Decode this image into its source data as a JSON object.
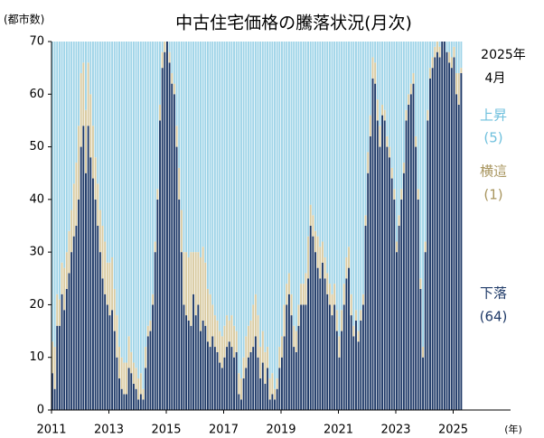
{
  "chart_data": {
    "type": "bar",
    "stacked": true,
    "title": "中古住宅価格の騰落状況(月次)",
    "y_label": "(都市数)",
    "x_label": "(年)",
    "date_label": [
      "2025年",
      "4月"
    ],
    "categories": [
      null,
      null,
      null,
      null,
      null,
      null,
      null,
      null,
      null,
      null,
      null,
      null,
      null,
      null,
      null,
      null,
      null,
      null,
      null,
      null,
      null,
      null,
      null,
      null,
      null,
      null,
      null,
      null,
      null,
      null,
      null,
      null,
      null,
      null,
      null,
      null,
      null,
      null,
      null,
      null,
      null,
      null,
      null,
      null,
      null,
      null,
      null,
      null,
      null,
      null,
      null,
      null,
      null,
      null,
      null,
      null,
      null,
      null,
      null,
      null,
      null,
      null,
      null,
      null,
      null,
      null,
      null,
      null,
      null,
      null,
      null,
      null,
      null,
      null,
      null,
      null,
      null,
      null,
      null,
      null,
      null,
      null,
      null,
      null,
      null,
      null,
      null,
      null,
      null,
      null,
      null,
      null,
      null,
      null,
      null,
      null,
      null,
      null,
      null,
      null,
      null,
      null,
      null,
      null,
      null,
      null,
      null,
      null,
      null,
      null,
      null,
      null,
      null,
      null,
      null,
      null,
      null,
      null,
      null,
      null,
      null,
      null,
      null,
      null,
      null,
      null,
      null,
      null,
      null,
      null,
      null,
      null,
      null,
      null,
      null,
      null,
      null,
      null,
      null,
      null,
      null,
      null,
      null,
      null,
      null,
      null,
      null,
      null,
      null,
      null,
      null,
      null,
      null,
      null,
      null,
      null,
      null,
      null,
      null,
      null,
      null,
      null,
      null,
      null,
      null,
      null,
      null,
      null,
      null,
      null,
      null,
      null
    ],
    "series": [
      {
        "name": "下落",
        "color": "#1f3a68",
        "last_label": "(64)",
        "values": [
          7,
          4,
          16,
          16,
          22,
          19,
          23,
          26,
          30,
          33,
          35,
          40,
          50,
          54,
          45,
          54,
          48,
          44,
          40,
          35,
          30,
          25,
          22,
          20,
          18,
          19,
          15,
          10,
          6,
          4,
          3,
          3,
          8,
          7,
          5,
          4,
          2,
          3,
          2,
          8,
          14,
          15,
          20,
          30,
          40,
          55,
          65,
          68,
          70,
          66,
          62,
          60,
          50,
          40,
          30,
          20,
          18,
          17,
          16,
          22,
          18,
          20,
          15,
          17,
          16,
          13,
          12,
          14,
          12,
          11,
          9,
          8,
          10,
          12,
          13,
          12,
          10,
          11,
          3,
          2,
          6,
          8,
          10,
          11,
          12,
          14,
          10,
          6,
          9,
          5,
          8,
          2,
          3,
          2,
          4,
          8,
          10,
          14,
          20,
          22,
          18,
          12,
          11,
          16,
          20,
          20,
          20,
          25,
          35,
          33,
          30,
          27,
          25,
          28,
          25,
          22,
          20,
          18,
          20,
          15,
          10,
          15,
          20,
          25,
          27,
          18,
          14,
          17,
          13,
          17,
          20,
          35,
          45,
          52,
          63,
          62,
          55,
          50,
          56,
          55,
          50,
          48,
          44,
          40,
          30,
          35,
          40,
          45,
          55,
          58,
          60,
          62,
          50,
          40,
          23,
          10,
          30,
          55,
          63,
          65,
          67,
          68,
          67,
          70,
          70,
          68,
          66,
          65,
          67,
          60,
          58,
          64
        ]
      },
      {
        "name": "横這",
        "color": "#d9cba2",
        "last_label": "(1)",
        "values": [
          6,
          8,
          6,
          5,
          6,
          8,
          7,
          8,
          8,
          10,
          12,
          14,
          14,
          12,
          12,
          12,
          12,
          10,
          8,
          8,
          8,
          10,
          10,
          8,
          10,
          10,
          8,
          8,
          6,
          6,
          6,
          6,
          6,
          4,
          4,
          4,
          4,
          4,
          2,
          4,
          2,
          2,
          2,
          2,
          2,
          3,
          3,
          2,
          0,
          2,
          2,
          2,
          4,
          6,
          8,
          10,
          12,
          12,
          14,
          8,
          12,
          10,
          14,
          14,
          12,
          10,
          10,
          6,
          6,
          6,
          6,
          6,
          6,
          6,
          4,
          6,
          6,
          4,
          4,
          4,
          4,
          6,
          6,
          6,
          8,
          8,
          8,
          6,
          6,
          6,
          4,
          4,
          4,
          2,
          2,
          4,
          4,
          6,
          4,
          4,
          4,
          4,
          4,
          4,
          4,
          4,
          6,
          8,
          4,
          4,
          4,
          6,
          6,
          4,
          4,
          4,
          4,
          4,
          4,
          4,
          4,
          4,
          4,
          4,
          4,
          4,
          2,
          2,
          2,
          2,
          2,
          2,
          4,
          4,
          4,
          4,
          4,
          4,
          2,
          2,
          2,
          2,
          2,
          2,
          2,
          2,
          2,
          2,
          2,
          2,
          2,
          2,
          2,
          2,
          2,
          2,
          2,
          2,
          2,
          2,
          2,
          2,
          2,
          0,
          0,
          0,
          2,
          2,
          2,
          4,
          6,
          1
        ]
      },
      {
        "name": "上昇",
        "color": "#9fd4e8",
        "last_label": "(5)",
        "values": [
          57,
          58,
          48,
          49,
          42,
          43,
          40,
          36,
          32,
          27,
          23,
          16,
          6,
          4,
          13,
          4,
          10,
          16,
          22,
          27,
          32,
          35,
          38,
          42,
          42,
          41,
          47,
          52,
          58,
          60,
          61,
          61,
          56,
          59,
          61,
          62,
          64,
          63,
          66,
          58,
          54,
          53,
          48,
          38,
          28,
          12,
          2,
          0,
          0,
          2,
          6,
          8,
          16,
          24,
          32,
          40,
          40,
          41,
          40,
          40,
          40,
          40,
          41,
          39,
          42,
          47,
          48,
          50,
          52,
          53,
          55,
          56,
          54,
          52,
          53,
          52,
          54,
          55,
          63,
          64,
          60,
          56,
          54,
          53,
          50,
          48,
          52,
          58,
          55,
          59,
          58,
          64,
          63,
          66,
          64,
          58,
          56,
          50,
          46,
          44,
          48,
          54,
          55,
          50,
          46,
          46,
          44,
          37,
          31,
          33,
          36,
          37,
          39,
          38,
          41,
          44,
          46,
          48,
          46,
          51,
          56,
          51,
          46,
          41,
          39,
          48,
          54,
          51,
          55,
          51,
          48,
          33,
          21,
          14,
          3,
          4,
          11,
          16,
          12,
          13,
          18,
          20,
          24,
          28,
          38,
          33,
          28,
          23,
          13,
          10,
          8,
          6,
          18,
          28,
          45,
          58,
          38,
          13,
          5,
          3,
          1,
          0,
          1,
          0,
          0,
          2,
          2,
          3,
          1,
          6,
          6,
          5
        ]
      }
    ],
    "xlim": [
      2011,
      2027
    ],
    "xticks": [
      2011,
      2013,
      2015,
      2017,
      2019,
      2021,
      2023,
      2025
    ],
    "ylim": [
      0,
      70
    ],
    "yticks": [
      0,
      10,
      20,
      30,
      40,
      50,
      60,
      70
    ]
  }
}
